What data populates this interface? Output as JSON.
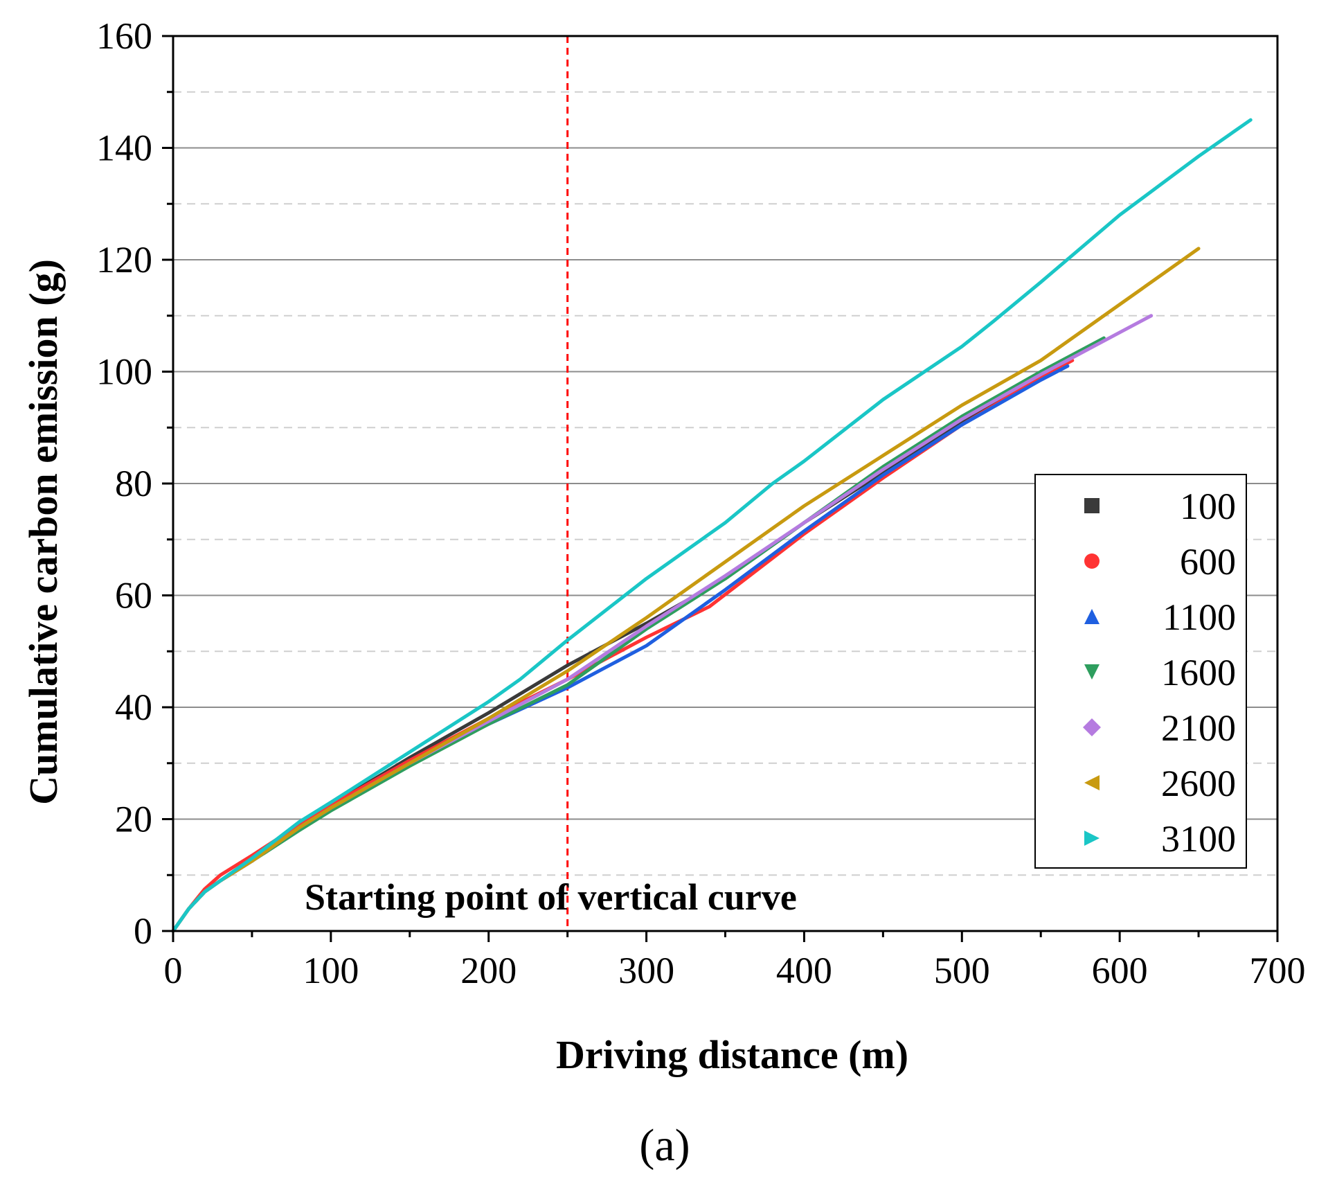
{
  "chart_data": {
    "type": "line",
    "title": "",
    "panel_label": "(a)",
    "xlabel": "Driving distance (m)",
    "ylabel": "Cumulative carbon emission (g)",
    "xlim": [
      0,
      700
    ],
    "ylim": [
      0,
      160
    ],
    "xticks": [
      0,
      100,
      200,
      300,
      400,
      500,
      600,
      700
    ],
    "yticks": [
      0,
      20,
      40,
      60,
      80,
      100,
      120,
      140,
      160
    ],
    "grid": "major solid gray, minor dashed light gray (y only)",
    "legend_position": "right",
    "annotation": {
      "text": "Starting point of vertical curve",
      "x": 250,
      "line_style": "dashed",
      "line_color": "#ff0000"
    },
    "series": [
      {
        "name": "100",
        "color": "#3a3a3a",
        "marker": "square",
        "x": [
          0,
          10,
          20,
          30,
          50,
          80,
          100,
          150,
          200,
          250,
          280,
          300,
          350,
          400,
          450,
          500,
          550,
          565
        ],
        "y": [
          0,
          4,
          7,
          9,
          12.5,
          19,
          22.5,
          31,
          39,
          47.5,
          52,
          55,
          63,
          73,
          82,
          91,
          99,
          101
        ]
      },
      {
        "name": "600",
        "color": "#ff3333",
        "marker": "circle",
        "x": [
          0,
          10,
          20,
          30,
          50,
          80,
          100,
          150,
          200,
          250,
          300,
          340,
          400,
          450,
          500,
          550,
          570
        ],
        "y": [
          0,
          4,
          7.5,
          10,
          13.5,
          19,
          22.5,
          30.5,
          38,
          45,
          52.5,
          58,
          71,
          81,
          90.5,
          99,
          102
        ]
      },
      {
        "name": "1100",
        "color": "#1f5fe0",
        "marker": "triangle-up",
        "x": [
          0,
          10,
          20,
          30,
          50,
          80,
          100,
          150,
          200,
          250,
          300,
          350,
          400,
          450,
          500,
          550,
          567
        ],
        "y": [
          0,
          4,
          7,
          9,
          12.5,
          18.5,
          22,
          30,
          37,
          43.5,
          51,
          61,
          71.5,
          81.5,
          90.5,
          98.5,
          101
        ]
      },
      {
        "name": "1600",
        "color": "#2e9e5e",
        "marker": "triangle-down",
        "x": [
          0,
          10,
          20,
          30,
          50,
          80,
          100,
          150,
          200,
          250,
          300,
          350,
          400,
          450,
          500,
          550,
          590
        ],
        "y": [
          0,
          4,
          7,
          9,
          12.5,
          18,
          21.5,
          29.5,
          37,
          44,
          54,
          63,
          73,
          83,
          92,
          100,
          106
        ]
      },
      {
        "name": "2100",
        "color": "#b57be0",
        "marker": "diamond",
        "x": [
          0,
          10,
          20,
          30,
          50,
          80,
          100,
          150,
          200,
          250,
          300,
          350,
          400,
          450,
          500,
          550,
          600,
          620
        ],
        "y": [
          0,
          4,
          7,
          9,
          12.5,
          18.5,
          22,
          30,
          37.5,
          45,
          54.5,
          63.5,
          73,
          82.5,
          91.5,
          99.5,
          107,
          110
        ]
      },
      {
        "name": "2600",
        "color": "#c89a10",
        "marker": "triangle-left",
        "x": [
          0,
          10,
          20,
          30,
          50,
          80,
          100,
          150,
          200,
          250,
          300,
          350,
          400,
          450,
          500,
          550,
          600,
          650
        ],
        "y": [
          0,
          4,
          7,
          9,
          12.5,
          18.5,
          22,
          30,
          38,
          46.5,
          56,
          66,
          76,
          85,
          94,
          102,
          112,
          122
        ]
      },
      {
        "name": "3100",
        "color": "#1ac6c6",
        "marker": "triangle-right",
        "x": [
          0,
          10,
          20,
          30,
          50,
          80,
          100,
          150,
          200,
          220,
          250,
          300,
          350,
          380,
          400,
          450,
          500,
          520,
          550,
          600,
          650,
          683
        ],
        "y": [
          0,
          4,
          7,
          9,
          13,
          19.5,
          23,
          32,
          41,
          45,
          52,
          63,
          73,
          80,
          84,
          95,
          104.5,
          109,
          116,
          128,
          138.5,
          145
        ]
      }
    ]
  }
}
